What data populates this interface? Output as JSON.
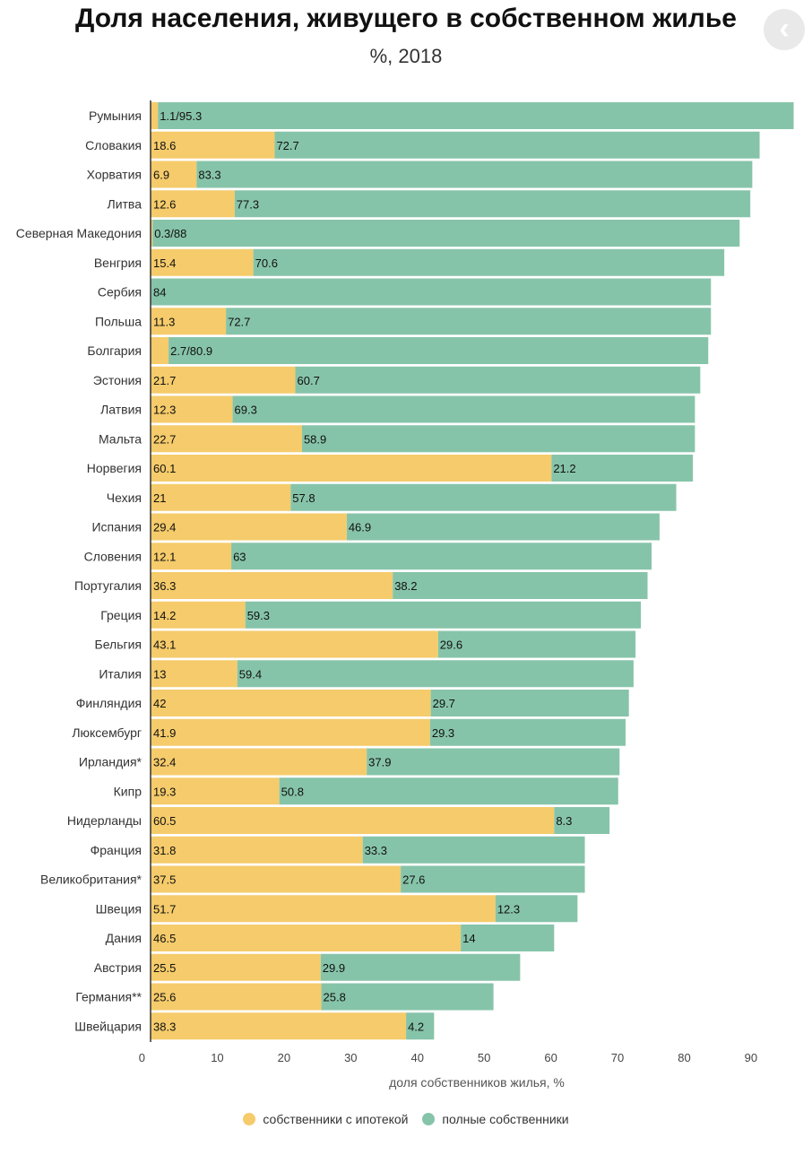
{
  "chart_data": {
    "type": "bar",
    "orientation": "horizontal",
    "stacked": true,
    "title": "Доля населения, живущего в собственном жилье",
    "subtitle": "%, 2018",
    "xlabel": "доля собственников жилья, %",
    "xlim": [
      0,
      97
    ],
    "xticks": [
      "0",
      "10",
      "20",
      "30",
      "40",
      "50",
      "60",
      "70",
      "80",
      "90"
    ],
    "categories": [
      "Румыния",
      "Словакия",
      "Хорватия",
      "Литва",
      "Северная Македония",
      "Венгрия",
      "Сербия",
      "Польша",
      "Болгария",
      "Эстония",
      "Латвия",
      "Мальта",
      "Норвегия",
      "Чехия",
      "Испания",
      "Словения",
      "Португалия",
      "Греция",
      "Бельгия",
      "Италия",
      "Финляндия",
      "Люксембург",
      "Ирландия*",
      "Кипр",
      "Нидерланды",
      "Франция",
      "Великобритания*",
      "Швеция",
      "Дания",
      "Австрия",
      "Германия**",
      "Швейцария"
    ],
    "series": [
      {
        "name": "собственники с ипотекой",
        "color": "#f5cb6b",
        "values": [
          1.1,
          18.6,
          6.9,
          12.6,
          0.3,
          15.4,
          0,
          11.3,
          2.7,
          21.7,
          12.3,
          22.7,
          60.1,
          21,
          29.4,
          12.1,
          36.3,
          14.2,
          43.1,
          13,
          42,
          41.9,
          32.4,
          19.3,
          60.5,
          31.8,
          37.5,
          51.7,
          46.5,
          25.5,
          25.6,
          38.3
        ]
      },
      {
        "name": "полные собственники",
        "color": "#86c4a9",
        "values": [
          95.3,
          72.7,
          83.3,
          77.3,
          88,
          70.6,
          84,
          72.7,
          80.9,
          60.7,
          69.3,
          58.9,
          21.2,
          57.8,
          46.9,
          63,
          38.2,
          59.3,
          29.6,
          59.4,
          29.7,
          29.3,
          37.9,
          50.8,
          8.3,
          33.3,
          27.6,
          12.3,
          14,
          29.9,
          25.8,
          4.2
        ]
      }
    ],
    "labels_a": [
      "",
      "18.6",
      "6.9",
      "12.6",
      "",
      "15.4",
      "",
      "11.3",
      "",
      "21.7",
      "12.3",
      "22.7",
      "60.1",
      "21",
      "29.4",
      "12.1",
      "36.3",
      "14.2",
      "43.1",
      "13",
      "42",
      "41.9",
      "32.4",
      "19.3",
      "60.5",
      "31.8",
      "37.5",
      "51.7",
      "46.5",
      "25.5",
      "25.6",
      "38.3"
    ],
    "labels_b": [
      "1.1/95.3",
      "72.7",
      "83.3",
      "77.3",
      "0.3/88",
      "70.6",
      "84",
      "72.7",
      "2.7/80.9",
      "60.7",
      "69.3",
      "58.9",
      "21.2",
      "57.8",
      "46.9",
      "63",
      "38.2",
      "59.3",
      "29.6",
      "59.4",
      "29.7",
      "29.3",
      "37.9",
      "50.8",
      "8.3",
      "33.3",
      "27.6",
      "12.3",
      "14",
      "29.9",
      "25.8",
      "4.2"
    ],
    "legend_position": "bottom"
  },
  "back_icon": "chevron-left-icon",
  "back_glyph": "‹"
}
